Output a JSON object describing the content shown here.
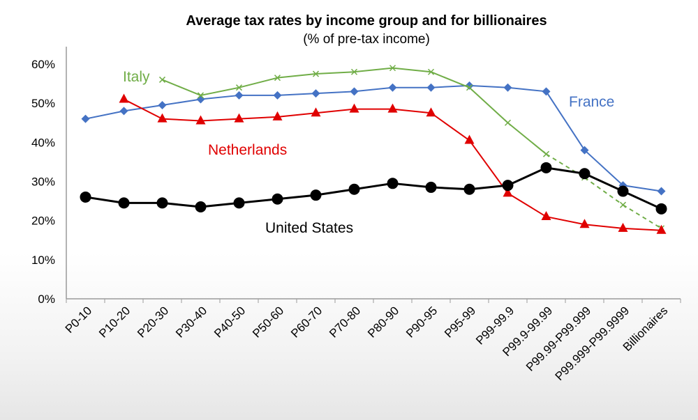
{
  "chart_data": {
    "type": "line",
    "title": "Average tax rates by income group and for billionaires",
    "subtitle": "(% of pre-tax income)",
    "xlabel": "",
    "ylabel": "",
    "ylim": [
      0,
      60
    ],
    "yticks": [
      "0%",
      "10%",
      "20%",
      "30%",
      "40%",
      "50%",
      "60%"
    ],
    "categories": [
      "P0-10",
      "P10-20",
      "P20-30",
      "P30-40",
      "P40-50",
      "P50-60",
      "P60-70",
      "P70-80",
      "P80-90",
      "P90-95",
      "P95-99",
      "P99-99.9",
      "P99.9-99.99",
      "P99.99-P99.999",
      "P99.999-P99.9999",
      "Billionaires"
    ],
    "grid": false,
    "legend": "inline labels",
    "series": [
      {
        "name": "France",
        "color": "#4472c4",
        "marker": "diamond",
        "values": [
          46,
          48,
          49.5,
          51,
          52,
          52,
          52.5,
          53,
          54,
          54,
          54.5,
          54,
          53,
          38,
          29,
          27.5
        ]
      },
      {
        "name": "Italy",
        "color": "#70ad47",
        "marker": "x",
        "values": [
          null,
          null,
          56,
          52,
          54,
          56.5,
          57.5,
          58,
          59,
          58,
          54,
          45,
          37,
          31,
          24,
          18
        ],
        "dashed_from_index": 12
      },
      {
        "name": "Netherlands",
        "color": "#e00000",
        "marker": "triangle",
        "values": [
          null,
          51,
          46,
          45.5,
          46,
          46.5,
          47.5,
          48.5,
          48.5,
          47.5,
          40.5,
          27,
          21,
          19,
          18,
          17.5
        ]
      },
      {
        "name": "United States",
        "color": "#000000",
        "marker": "circle",
        "values": [
          26,
          24.5,
          24.5,
          23.5,
          24.5,
          25.5,
          26.5,
          28,
          29.5,
          28.5,
          28,
          29,
          33.5,
          32,
          27.5,
          23
        ]
      }
    ]
  }
}
